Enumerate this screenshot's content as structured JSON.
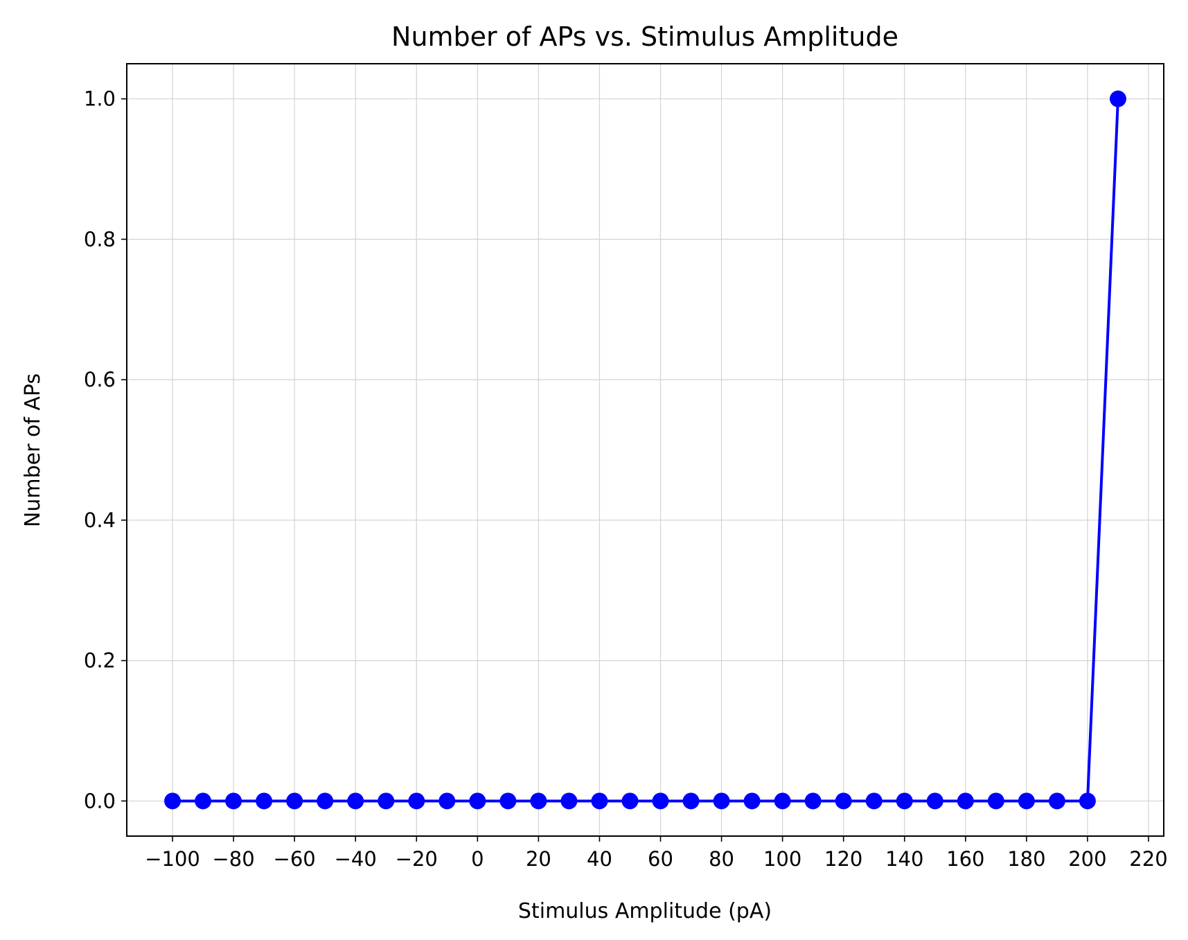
{
  "chart_data": {
    "type": "line",
    "title": "Number of APs vs. Stimulus Amplitude",
    "xlabel": "Stimulus Amplitude (pA)",
    "ylabel": "Number of APs",
    "xlim": [
      -115,
      225
    ],
    "ylim": [
      -0.05,
      1.05
    ],
    "xticks": [
      -100,
      -80,
      -60,
      -40,
      -20,
      0,
      20,
      40,
      60,
      80,
      100,
      120,
      140,
      160,
      180,
      200,
      220
    ],
    "xtick_labels": [
      "−100",
      "−80",
      "−60",
      "−40",
      "−20",
      "0",
      "20",
      "40",
      "60",
      "80",
      "100",
      "120",
      "140",
      "160",
      "180",
      "200",
      "220"
    ],
    "yticks": [
      0.0,
      0.2,
      0.4,
      0.6,
      0.8,
      1.0
    ],
    "ytick_labels": [
      "0.0",
      "0.2",
      "0.4",
      "0.6",
      "0.8",
      "1.0"
    ],
    "grid": true,
    "series": [
      {
        "color": "#0000ff",
        "marker": "circle",
        "x": [
          -100,
          -90,
          -80,
          -70,
          -60,
          -50,
          -40,
          -30,
          -20,
          -10,
          0,
          10,
          20,
          30,
          40,
          50,
          60,
          70,
          80,
          90,
          100,
          110,
          120,
          130,
          140,
          150,
          160,
          170,
          180,
          190,
          200,
          210
        ],
        "y": [
          0,
          0,
          0,
          0,
          0,
          0,
          0,
          0,
          0,
          0,
          0,
          0,
          0,
          0,
          0,
          0,
          0,
          0,
          0,
          0,
          0,
          0,
          0,
          0,
          0,
          0,
          0,
          0,
          0,
          0,
          0,
          1
        ]
      }
    ]
  }
}
